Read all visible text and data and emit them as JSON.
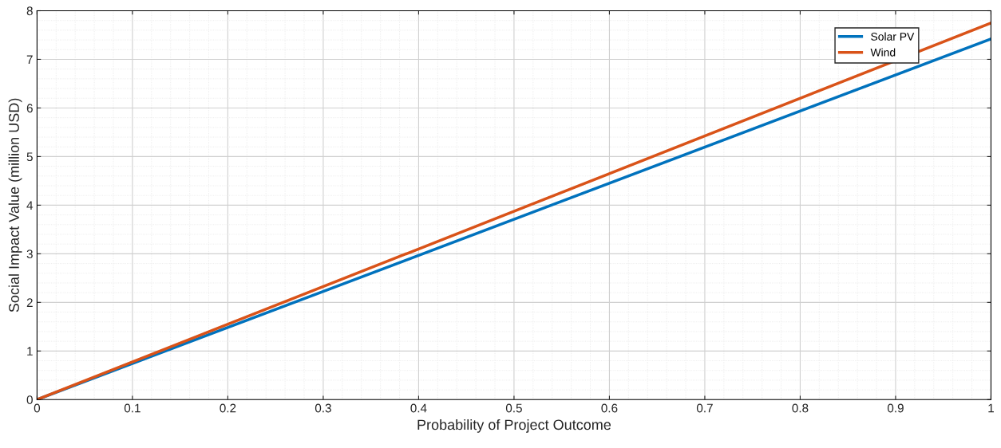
{
  "chart_data": {
    "type": "line",
    "xlabel": "Probability of Project Outcome",
    "ylabel": "Social Impact Value (million USD)",
    "x": [
      0,
      1
    ],
    "series": [
      {
        "name": "Solar PV",
        "color": "#0072bd",
        "values": [
          0,
          7.42
        ]
      },
      {
        "name": "Wind",
        "color": "#d95319",
        "values": [
          0,
          7.75
        ]
      }
    ],
    "xlim": [
      0,
      1
    ],
    "xticks": [
      0,
      0.1,
      0.2,
      0.3,
      0.4,
      0.5,
      0.6,
      0.7,
      0.8,
      0.9,
      1
    ],
    "ylim": [
      0,
      8
    ],
    "yticks": [
      0,
      1,
      2,
      3,
      4,
      5,
      6,
      7,
      8
    ],
    "grid": true,
    "legend": "top right",
    "marker": "none",
    "line_style": "solid"
  }
}
